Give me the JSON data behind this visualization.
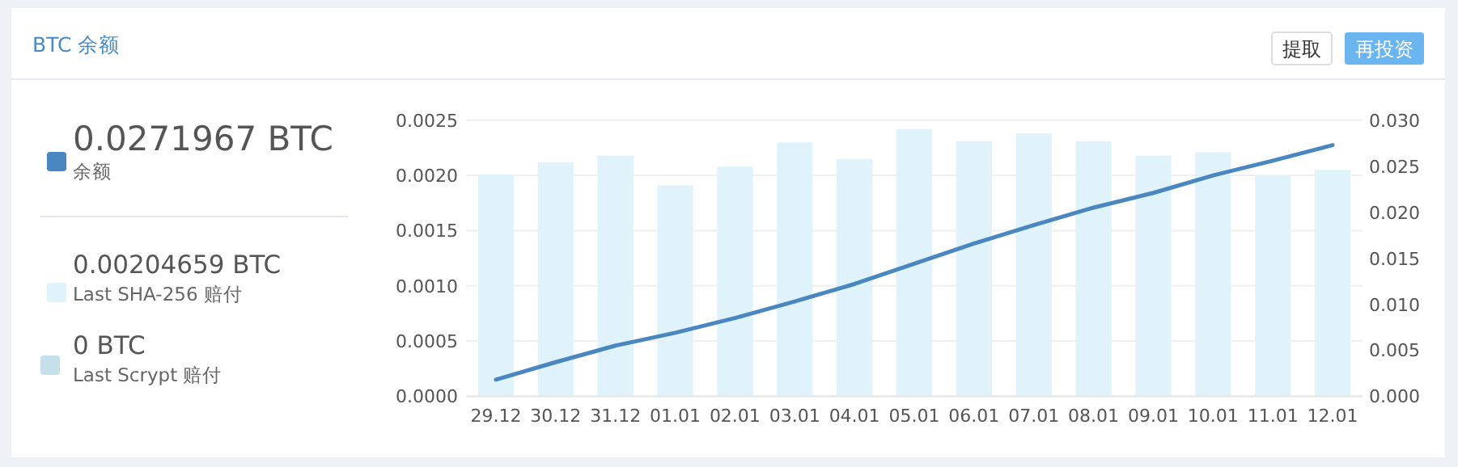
{
  "chart_data": {
    "type": "bar",
    "title": "BTC 余额",
    "categories": [
      "29.12",
      "30.12",
      "31.12",
      "01.01",
      "02.01",
      "03.01",
      "04.01",
      "05.01",
      "06.01",
      "07.01",
      "08.01",
      "09.01",
      "10.01",
      "11.01",
      "12.01"
    ],
    "series": [
      {
        "name": "Last SHA-256 赔付",
        "color": "#e0f3fb",
        "values": [
          0.00201,
          0.00212,
          0.00218,
          0.00191,
          0.00208,
          0.0023,
          0.00215,
          0.00242,
          0.00231,
          0.00238,
          0.00231,
          0.00218,
          0.00221,
          0.002,
          0.00205
        ]
      },
      {
        "name": "余额",
        "type": "line",
        "axis": "y2",
        "color": "#4a86bf",
        "values": [
          0.0018,
          0.0037,
          0.0055,
          0.0069,
          0.0085,
          0.0103,
          0.0122,
          0.0144,
          0.0166,
          0.0186,
          0.0205,
          0.0221,
          0.024,
          0.0256,
          0.0273
        ]
      }
    ],
    "ylim": [
      0,
      0.0025
    ],
    "yticks": [
      {
        "value": 0,
        "label": "0.0000"
      },
      {
        "value": 0.0005,
        "label": "0.0005"
      },
      {
        "value": 0.001,
        "label": "0.0010"
      },
      {
        "value": 0.0015,
        "label": "0.0015"
      },
      {
        "value": 0.002,
        "label": "0.0020"
      },
      {
        "value": 0.0025,
        "label": "0.0025"
      }
    ],
    "y2lim": [
      0,
      0.03
    ],
    "y2ticks": [
      {
        "value": 0,
        "label": "0.000"
      },
      {
        "value": 0.005,
        "label": "0.005"
      },
      {
        "value": 0.01,
        "label": "0.010"
      },
      {
        "value": 0.015,
        "label": "0.015"
      },
      {
        "value": 0.02,
        "label": "0.020"
      },
      {
        "value": 0.025,
        "label": "0.025"
      },
      {
        "value": 0.03,
        "label": "0.030"
      }
    ],
    "grid": "y",
    "legend": "left",
    "marker": "none",
    "annotations": [
      "0.0271967 BTC",
      "0.00204659 BTC",
      "0 BTC",
      "Last Scrypt 赔付",
      "提取",
      "再投资"
    ]
  }
}
